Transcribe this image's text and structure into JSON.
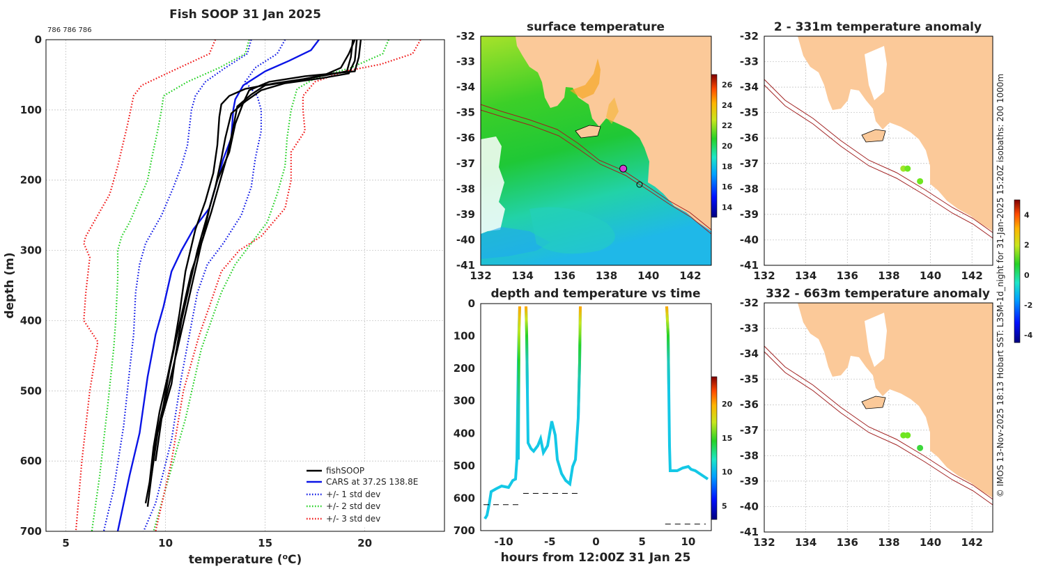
{
  "chart_data": [
    {
      "type": "line",
      "title": "Fish SOOP 31 Jan 2025",
      "subtitle": "786 786 786",
      "xlabel": "temperature (°C)",
      "ylabel": "depth (m)",
      "xlim": [
        4,
        24
      ],
      "ylim": [
        700,
        0
      ],
      "xticks": [
        5,
        10,
        15,
        20
      ],
      "yticks": [
        0,
        100,
        200,
        300,
        400,
        500,
        600,
        700
      ],
      "legend": [
        "fishSOOP",
        "CARS at 37.2S 138.8E",
        "+/- 1 std dev",
        "+/- 2 std dev",
        "+/- 3 std dev"
      ],
      "legend_position": "bottom-right",
      "series": [
        {
          "name": "CARS at 37.2S 138.8E",
          "color": "#0a14e6",
          "style": "solid",
          "points": [
            [
              17.7,
              0
            ],
            [
              17.3,
              15
            ],
            [
              16.2,
              30
            ],
            [
              15.0,
              45
            ],
            [
              13.9,
              65
            ],
            [
              13.5,
              85
            ],
            [
              13.4,
              100
            ],
            [
              13.3,
              140
            ],
            [
              12.9,
              170
            ],
            [
              12.6,
              200
            ],
            [
              12.2,
              240
            ],
            [
              11.4,
              270
            ],
            [
              10.8,
              300
            ],
            [
              10.3,
              330
            ],
            [
              9.9,
              380
            ],
            [
              9.5,
              420
            ],
            [
              9.1,
              480
            ],
            [
              8.7,
              560
            ],
            [
              8.2,
              620
            ],
            [
              7.6,
              700
            ]
          ]
        },
        {
          "name": "-1 std dev",
          "color": "#0a14e6",
          "style": "dotted",
          "points": [
            [
              14.3,
              0
            ],
            [
              14.1,
              20
            ],
            [
              13.0,
              40
            ],
            [
              12.0,
              60
            ],
            [
              11.5,
              80
            ],
            [
              11.3,
              100
            ],
            [
              11.1,
              150
            ],
            [
              10.8,
              180
            ],
            [
              10.4,
              210
            ],
            [
              9.8,
              250
            ],
            [
              9.0,
              290
            ],
            [
              8.7,
              320
            ],
            [
              8.5,
              360
            ],
            [
              8.4,
              420
            ],
            [
              8.2,
              470
            ],
            [
              7.9,
              550
            ],
            [
              7.4,
              640
            ],
            [
              6.9,
              700
            ]
          ]
        },
        {
          "name": "+1 std dev",
          "color": "#0a14e6",
          "style": "dotted",
          "points": [
            [
              16.0,
              0
            ],
            [
              15.6,
              20
            ],
            [
              14.5,
              40
            ],
            [
              14.0,
              60
            ],
            [
              14.6,
              80
            ],
            [
              14.8,
              100
            ],
            [
              14.8,
              130
            ],
            [
              14.5,
              170
            ],
            [
              14.3,
              210
            ],
            [
              13.8,
              250
            ],
            [
              12.9,
              290
            ],
            [
              12.1,
              320
            ],
            [
              11.6,
              360
            ],
            [
              11.2,
              420
            ],
            [
              10.8,
              480
            ],
            [
              10.3,
              570
            ],
            [
              9.5,
              660
            ],
            [
              8.9,
              700
            ]
          ]
        },
        {
          "name": "-2 std dev",
          "color": "#20d020",
          "style": "dotted",
          "points": [
            [
              14.2,
              0
            ],
            [
              14.0,
              20
            ],
            [
              12.7,
              40
            ],
            [
              11.1,
              60
            ],
            [
              9.9,
              80
            ],
            [
              9.8,
              100
            ],
            [
              9.6,
              130
            ],
            [
              9.3,
              170
            ],
            [
              9.1,
              200
            ],
            [
              8.2,
              260
            ],
            [
              7.8,
              280
            ],
            [
              7.6,
              300
            ],
            [
              7.6,
              340
            ],
            [
              7.5,
              400
            ],
            [
              7.4,
              440
            ],
            [
              7.1,
              520
            ],
            [
              6.7,
              620
            ],
            [
              6.3,
              700
            ]
          ]
        },
        {
          "name": "+2 std dev",
          "color": "#20d020",
          "style": "dotted",
          "points": [
            [
              21.2,
              0
            ],
            [
              20.9,
              20
            ],
            [
              19.3,
              40
            ],
            [
              17.5,
              55
            ],
            [
              16.6,
              70
            ],
            [
              16.3,
              100
            ],
            [
              16.1,
              140
            ],
            [
              16.0,
              180
            ],
            [
              15.6,
              220
            ],
            [
              15.1,
              260
            ],
            [
              14.3,
              290
            ],
            [
              13.5,
              320
            ],
            [
              12.8,
              360
            ],
            [
              12.3,
              400
            ],
            [
              11.8,
              440
            ],
            [
              11.0,
              540
            ],
            [
              10.0,
              640
            ],
            [
              9.4,
              700
            ]
          ]
        },
        {
          "name": "-3 std dev",
          "color": "#f01414",
          "style": "dotted",
          "points": [
            [
              12.5,
              0
            ],
            [
              12.2,
              20
            ],
            [
              10.3,
              45
            ],
            [
              8.8,
              65
            ],
            [
              8.4,
              80
            ],
            [
              8.1,
              120
            ],
            [
              7.6,
              180
            ],
            [
              7.2,
              220
            ],
            [
              6.4,
              260
            ],
            [
              6.0,
              280
            ],
            [
              5.9,
              290
            ],
            [
              6.2,
              310
            ],
            [
              6.0,
              360
            ],
            [
              5.9,
              400
            ],
            [
              6.6,
              430
            ],
            [
              6.2,
              500
            ],
            [
              5.8,
              600
            ],
            [
              5.5,
              700
            ]
          ]
        },
        {
          "name": "+3 std dev",
          "color": "#f01414",
          "style": "dotted",
          "points": [
            [
              22.8,
              0
            ],
            [
              22.4,
              20
            ],
            [
              20.8,
              35
            ],
            [
              19.0,
              45
            ],
            [
              17.5,
              60
            ],
            [
              16.9,
              80
            ],
            [
              16.9,
              100
            ],
            [
              17.0,
              130
            ],
            [
              16.3,
              160
            ],
            [
              16.3,
              200
            ],
            [
              16.0,
              240
            ],
            [
              14.8,
              280
            ],
            [
              13.7,
              300
            ],
            [
              12.8,
              330
            ],
            [
              12.2,
              380
            ],
            [
              11.7,
              420
            ],
            [
              10.9,
              500
            ],
            [
              10.3,
              600
            ],
            [
              9.5,
              700
            ]
          ]
        },
        {
          "name": "fishSOOP cast 1",
          "color": "#000000",
          "style": "solid",
          "points": [
            [
              19.4,
              0
            ],
            [
              19.3,
              25
            ],
            [
              19.1,
              45
            ],
            [
              17.2,
              55
            ],
            [
              15.5,
              62
            ],
            [
              14.0,
              70
            ],
            [
              13.2,
              80
            ],
            [
              12.8,
              92
            ],
            [
              12.7,
              110
            ],
            [
              12.6,
              150
            ],
            [
              12.4,
              190
            ],
            [
              12.0,
              230
            ],
            [
              11.5,
              270
            ],
            [
              11.0,
              330
            ],
            [
              10.7,
              390
            ],
            [
              10.4,
              440
            ],
            [
              10.1,
              480
            ],
            [
              9.7,
              530
            ],
            [
              9.4,
              580
            ],
            [
              9.2,
              630
            ],
            [
              9.0,
              660
            ]
          ]
        },
        {
          "name": "fishSOOP cast 2",
          "color": "#000000",
          "style": "solid",
          "points": [
            [
              19.8,
              0
            ],
            [
              19.7,
              25
            ],
            [
              19.5,
              45
            ],
            [
              17.0,
              52
            ],
            [
              15.2,
              60
            ],
            [
              14.2,
              72
            ],
            [
              13.9,
              90
            ],
            [
              13.5,
              120
            ],
            [
              13.2,
              160
            ],
            [
              12.6,
              200
            ],
            [
              12.2,
              240
            ],
            [
              11.9,
              280
            ],
            [
              11.3,
              330
            ],
            [
              10.9,
              380
            ],
            [
              10.5,
              430
            ],
            [
              10.2,
              470
            ],
            [
              9.9,
              520
            ],
            [
              9.5,
              570
            ],
            [
              9.3,
              620
            ],
            [
              9.1,
              665
            ]
          ]
        },
        {
          "name": "fishSOOP cast 3",
          "color": "#000000",
          "style": "solid",
          "points": [
            [
              19.6,
              0
            ],
            [
              19.5,
              30
            ],
            [
              19.2,
              48
            ],
            [
              17.8,
              55
            ],
            [
              16.0,
              62
            ],
            [
              14.8,
              72
            ],
            [
              14.0,
              88
            ],
            [
              13.3,
              105
            ],
            [
              13.0,
              140
            ],
            [
              12.8,
              170
            ],
            [
              12.5,
              210
            ],
            [
              12.1,
              250
            ],
            [
              11.6,
              300
            ],
            [
              11.2,
              350
            ],
            [
              10.8,
              400
            ],
            [
              10.5,
              450
            ],
            [
              10.3,
              490
            ],
            [
              9.8,
              540
            ],
            [
              9.5,
              600
            ]
          ]
        },
        {
          "name": "fishSOOP cast 4",
          "color": "#000000",
          "style": "solid",
          "points": [
            [
              19.5,
              0
            ],
            [
              19.2,
              20
            ],
            [
              18.8,
              40
            ],
            [
              18.0,
              50
            ],
            [
              16.6,
              58
            ],
            [
              15.0,
              65
            ],
            [
              14.3,
              78
            ],
            [
              13.6,
              95
            ],
            [
              13.4,
              125
            ],
            [
              13.1,
              165
            ],
            [
              12.7,
              205
            ],
            [
              12.3,
              245
            ],
            [
              11.8,
              290
            ],
            [
              11.4,
              340
            ],
            [
              11.0,
              390
            ],
            [
              10.6,
              440
            ],
            [
              10.1,
              500
            ],
            [
              9.6,
              560
            ],
            [
              9.3,
              620
            ]
          ]
        }
      ]
    },
    {
      "type": "heatmap",
      "title": "surface temperature",
      "xlim": [
        132,
        143
      ],
      "ylim": [
        -41,
        -32
      ],
      "xticks": [
        132,
        134,
        136,
        138,
        140,
        142
      ],
      "yticks": [
        -32,
        -33,
        -34,
        -35,
        -36,
        -37,
        -38,
        -39,
        -40,
        -41
      ],
      "colorbar": {
        "ticks": [
          14,
          16,
          18,
          20,
          22,
          24,
          26
        ],
        "range": [
          13,
          27
        ]
      },
      "marker": {
        "lon": 138.8,
        "lat": -37.2
      }
    },
    {
      "type": "scatter",
      "title": "depth and temperature vs time",
      "xlabel": "hours from 12:00Z 31 Jan 25",
      "xlim": [
        -12.5,
        12.5
      ],
      "ylim": [
        700,
        0
      ],
      "xticks": [
        -10,
        -5,
        0,
        5,
        10
      ],
      "yticks": [
        0,
        100,
        200,
        300,
        400,
        500,
        600,
        700
      ],
      "colorbar": {
        "ticks": [
          5,
          10,
          15,
          20
        ],
        "range": [
          3,
          24
        ]
      },
      "bottom_depth_markers": [
        {
          "x0": -12.2,
          "x1": -8.3,
          "depth": 620
        },
        {
          "x0": -7.9,
          "x1": -1.6,
          "depth": 585
        },
        {
          "x0": 7.5,
          "x1": 11.9,
          "depth": 680
        }
      ]
    },
    {
      "type": "heatmap",
      "title": "2 - 331m temperature anomaly",
      "xlim": [
        132,
        143
      ],
      "ylim": [
        -41,
        -32
      ],
      "xticks": [
        132,
        134,
        136,
        138,
        140,
        142
      ],
      "yticks": [
        -32,
        -33,
        -34,
        -35,
        -36,
        -37,
        -38,
        -39,
        -40,
        -41
      ],
      "points": [
        {
          "lon": 138.7,
          "lat": -37.2,
          "value": 1.3
        },
        {
          "lon": 138.9,
          "lat": -37.2,
          "value": 1.0
        },
        {
          "lon": 139.5,
          "lat": -37.7,
          "value": 0.8
        }
      ]
    },
    {
      "type": "heatmap",
      "title": "332 - 663m temperature anomaly",
      "xlim": [
        132,
        143
      ],
      "ylim": [
        -41,
        -32
      ],
      "xticks": [
        132,
        134,
        136,
        138,
        140,
        142
      ],
      "yticks": [
        -32,
        -33,
        -34,
        -35,
        -36,
        -37,
        -38,
        -39,
        -40,
        -41
      ],
      "colorbar": {
        "ticks": [
          -4,
          -2,
          0,
          2,
          4
        ],
        "range": [
          -4.5,
          5
        ]
      },
      "points": [
        {
          "lon": 138.7,
          "lat": -37.2,
          "value": 1.0
        },
        {
          "lon": 138.9,
          "lat": -37.2,
          "value": 0.8
        },
        {
          "lon": 139.5,
          "lat": -37.7,
          "value": 0.3
        }
      ]
    }
  ],
  "credit": "© IMOS 13-Nov-2025 18:13 Hobart SST: L3SM-1d_night for 31-Jan-2025 15:20Z isobaths: 200  1000m"
}
